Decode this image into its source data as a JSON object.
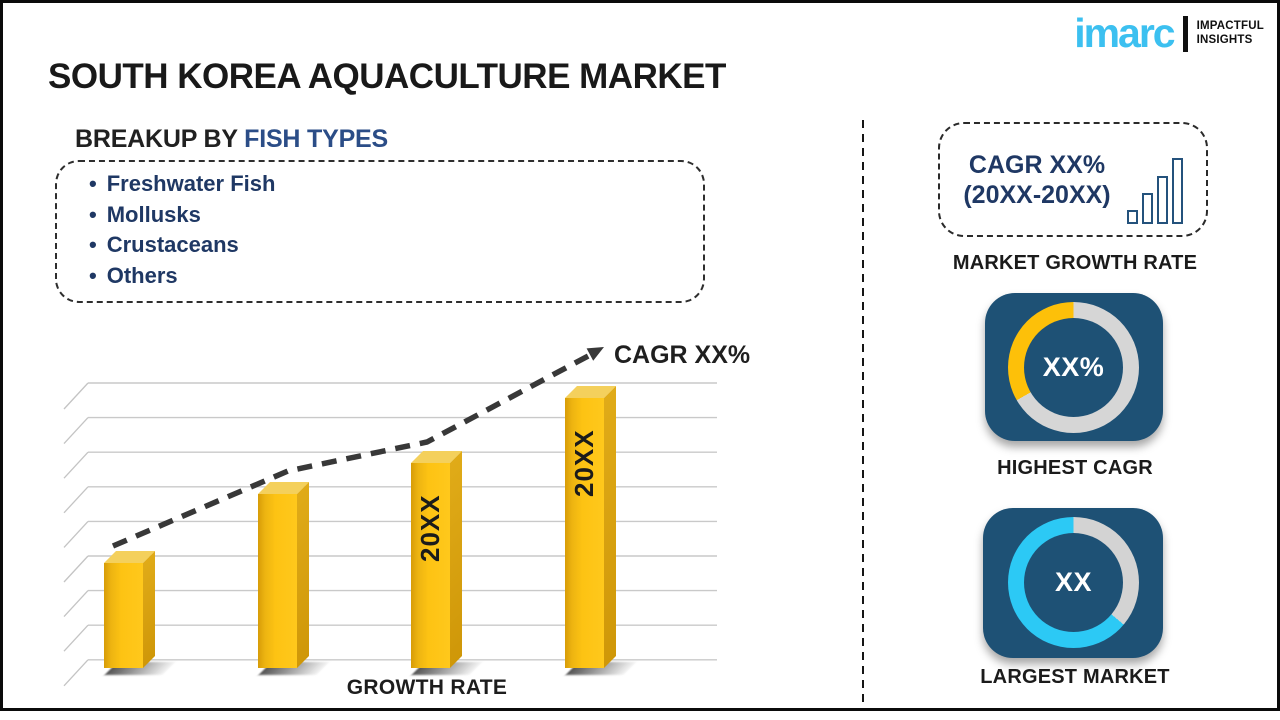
{
  "page": {
    "title": "SOUTH KOREA AQUACULTURE MARKET"
  },
  "logo": {
    "brand": "imarc",
    "tagline_line1": "IMPACTFUL",
    "tagline_line2": "INSIGHTS",
    "brand_color": "#3cc0f0"
  },
  "breakup": {
    "heading_prefix": "BREAKUP BY ",
    "heading_highlight": "FISH TYPES",
    "bullet": "•",
    "items": [
      "Freshwater Fish",
      "Mollusks",
      "Crustaceans",
      "Others"
    ]
  },
  "chart_data": {
    "type": "bar",
    "categories": [
      "",
      "",
      "20XX",
      "20XX"
    ],
    "values": [
      34,
      56,
      66,
      87
    ],
    "title": "",
    "xlabel": "GROWTH RATE",
    "ylabel": "",
    "ylim": [
      0,
      100
    ],
    "grid": true,
    "legend": false,
    "trend_annotation": "CAGR XX%",
    "bar_color": "#fdc313"
  },
  "right_panel": {
    "cagr_box": {
      "line1": "CAGR XX%",
      "line2": "(20XX-20XX)",
      "icon_bars": [
        14,
        31,
        48,
        66
      ]
    },
    "market_growth_caption": "MARKET GROWTH RATE",
    "highest_cagr": {
      "value": "XX%",
      "caption": "HIGHEST CAGR",
      "segments": [
        {
          "color": "#d6d6d6",
          "from": 0,
          "to": 240
        },
        {
          "color": "#fdc009",
          "from": 240,
          "to": 360
        }
      ]
    },
    "largest_market": {
      "value": "XX",
      "caption": "LARGEST MARKET",
      "segments": [
        {
          "color": "#d3d3d3",
          "from": 0,
          "to": 130
        },
        {
          "color": "#2cc9f5",
          "from": 130,
          "to": 360
        }
      ]
    }
  },
  "colors": {
    "navy_text": "#1f3864",
    "heading_blue": "#2b4d87",
    "panel_blue": "#1e5175",
    "accent_yellow": "#fdc009",
    "accent_cyan": "#2cc9f5",
    "trend_line": "#383838"
  }
}
